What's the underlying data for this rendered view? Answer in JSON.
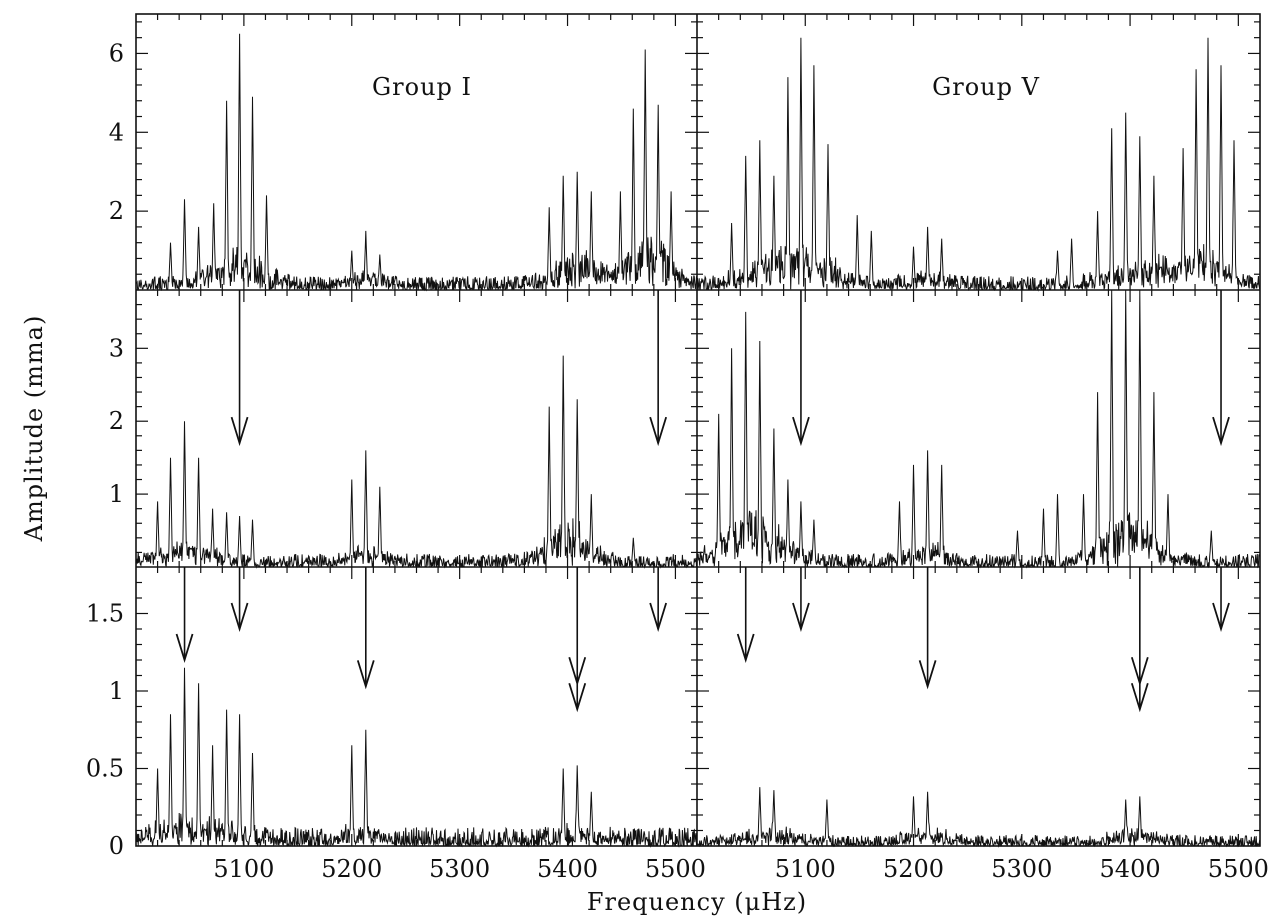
{
  "chart_data": {
    "type": "line",
    "title": "",
    "xlabel": "Frequency (μHz)",
    "ylabel": "Amplitude (mma)",
    "xlim": [
      5000,
      5520
    ],
    "x_ticks": [
      5100,
      5200,
      5300,
      5400,
      5500
    ],
    "x_tick_labels": [
      "5100",
      "5200",
      "5300",
      "5400",
      "5500"
    ],
    "columns": [
      {
        "name": "Group I"
      },
      {
        "name": "Group V"
      }
    ],
    "rows": [
      {
        "ylim": [
          0,
          7
        ],
        "y_ticks": [
          2,
          4,
          6
        ],
        "y_tick_labels": [
          "2",
          "4",
          "6"
        ],
        "panels": [
          {
            "group": "Group I",
            "noise": 0.35,
            "peaks": [
              {
                "x": 5032,
                "a": 1.2
              },
              {
                "x": 5045,
                "a": 2.3
              },
              {
                "x": 5058,
                "a": 1.6
              },
              {
                "x": 5072,
                "a": 2.2
              },
              {
                "x": 5084,
                "a": 4.8
              },
              {
                "x": 5096,
                "a": 6.5
              },
              {
                "x": 5108,
                "a": 4.9
              },
              {
                "x": 5121,
                "a": 2.4
              },
              {
                "x": 5200,
                "a": 1.0
              },
              {
                "x": 5213,
                "a": 1.5
              },
              {
                "x": 5226,
                "a": 0.9
              },
              {
                "x": 5383,
                "a": 2.1
              },
              {
                "x": 5396,
                "a": 2.9
              },
              {
                "x": 5409,
                "a": 3.0
              },
              {
                "x": 5422,
                "a": 2.5
              },
              {
                "x": 5449,
                "a": 2.5
              },
              {
                "x": 5461,
                "a": 4.6
              },
              {
                "x": 5472,
                "a": 6.1
              },
              {
                "x": 5484,
                "a": 4.7
              },
              {
                "x": 5496,
                "a": 2.5
              }
            ],
            "bumps": [
              {
                "x": 5096,
                "w": 32,
                "a": 0.8
              },
              {
                "x": 5410,
                "w": 30,
                "a": 0.8
              },
              {
                "x": 5475,
                "w": 30,
                "a": 1.2
              },
              {
                "x": 5213,
                "w": 20,
                "a": 0.2
              }
            ]
          },
          {
            "group": "Group V",
            "noise": 0.35,
            "peaks": [
              {
                "x": 5032,
                "a": 1.7
              },
              {
                "x": 5045,
                "a": 3.4
              },
              {
                "x": 5058,
                "a": 3.8
              },
              {
                "x": 5071,
                "a": 2.9
              },
              {
                "x": 5084,
                "a": 5.4
              },
              {
                "x": 5096,
                "a": 6.4
              },
              {
                "x": 5108,
                "a": 5.7
              },
              {
                "x": 5121,
                "a": 3.7
              },
              {
                "x": 5148,
                "a": 1.9
              },
              {
                "x": 5161,
                "a": 1.5
              },
              {
                "x": 5200,
                "a": 1.1
              },
              {
                "x": 5213,
                "a": 1.6
              },
              {
                "x": 5226,
                "a": 1.3
              },
              {
                "x": 5333,
                "a": 1.0
              },
              {
                "x": 5346,
                "a": 1.3
              },
              {
                "x": 5370,
                "a": 2.0
              },
              {
                "x": 5383,
                "a": 4.1
              },
              {
                "x": 5396,
                "a": 4.5
              },
              {
                "x": 5409,
                "a": 3.9
              },
              {
                "x": 5422,
                "a": 2.9
              },
              {
                "x": 5449,
                "a": 3.6
              },
              {
                "x": 5461,
                "a": 5.6
              },
              {
                "x": 5472,
                "a": 6.4
              },
              {
                "x": 5484,
                "a": 5.7
              },
              {
                "x": 5496,
                "a": 3.8
              }
            ],
            "bumps": [
              {
                "x": 5090,
                "w": 45,
                "a": 1.0
              },
              {
                "x": 5420,
                "w": 45,
                "a": 0.6
              },
              {
                "x": 5472,
                "w": 25,
                "a": 0.9
              },
              {
                "x": 5213,
                "w": 22,
                "a": 0.3
              }
            ]
          }
        ]
      },
      {
        "ylim": [
          0,
          3.8
        ],
        "y_ticks": [
          1,
          2,
          3
        ],
        "y_tick_labels": [
          "1",
          "2",
          "3"
        ],
        "panels": [
          {
            "group": "Group I",
            "noise": 0.18,
            "peaks": [
              {
                "x": 5020,
                "a": 0.9
              },
              {
                "x": 5032,
                "a": 1.5
              },
              {
                "x": 5045,
                "a": 2.0
              },
              {
                "x": 5058,
                "a": 1.5
              },
              {
                "x": 5071,
                "a": 0.8
              },
              {
                "x": 5084,
                "a": 0.75
              },
              {
                "x": 5096,
                "a": 0.7
              },
              {
                "x": 5108,
                "a": 0.65
              },
              {
                "x": 5200,
                "a": 1.2
              },
              {
                "x": 5213,
                "a": 1.6
              },
              {
                "x": 5226,
                "a": 1.1
              },
              {
                "x": 5383,
                "a": 2.2
              },
              {
                "x": 5396,
                "a": 2.9
              },
              {
                "x": 5409,
                "a": 2.3
              },
              {
                "x": 5422,
                "a": 1.0
              },
              {
                "x": 5461,
                "a": 0.4
              }
            ],
            "bumps": [
              {
                "x": 5045,
                "w": 35,
                "a": 0.25
              },
              {
                "x": 5400,
                "w": 25,
                "a": 0.6
              },
              {
                "x": 5213,
                "w": 20,
                "a": 0.2
              }
            ]
          },
          {
            "group": "Group V",
            "noise": 0.18,
            "peaks": [
              {
                "x": 5020,
                "a": 2.1
              },
              {
                "x": 5032,
                "a": 3.0
              },
              {
                "x": 5045,
                "a": 3.5
              },
              {
                "x": 5058,
                "a": 3.1
              },
              {
                "x": 5071,
                "a": 1.9
              },
              {
                "x": 5084,
                "a": 1.2
              },
              {
                "x": 5096,
                "a": 0.9
              },
              {
                "x": 5108,
                "a": 0.65
              },
              {
                "x": 5187,
                "a": 0.9
              },
              {
                "x": 5200,
                "a": 1.4
              },
              {
                "x": 5213,
                "a": 1.6
              },
              {
                "x": 5226,
                "a": 1.4
              },
              {
                "x": 5296,
                "a": 0.5
              },
              {
                "x": 5320,
                "a": 0.8
              },
              {
                "x": 5333,
                "a": 1.0
              },
              {
                "x": 5357,
                "a": 1.0
              },
              {
                "x": 5370,
                "a": 2.4
              },
              {
                "x": 5383,
                "a": 3.8
              },
              {
                "x": 5396,
                "a": 3.8
              },
              {
                "x": 5409,
                "a": 3.8
              },
              {
                "x": 5422,
                "a": 2.4
              },
              {
                "x": 5435,
                "a": 1.0
              },
              {
                "x": 5475,
                "a": 0.5
              }
            ],
            "bumps": [
              {
                "x": 5050,
                "w": 35,
                "a": 0.7
              },
              {
                "x": 5398,
                "w": 30,
                "a": 0.7
              },
              {
                "x": 5213,
                "w": 22,
                "a": 0.25
              }
            ]
          }
        ]
      },
      {
        "ylim": [
          0,
          1.8
        ],
        "y_ticks": [
          0,
          0.5,
          1,
          1.5
        ],
        "y_tick_labels": [
          "0",
          "0.5",
          "1",
          "1.5"
        ],
        "panels": [
          {
            "group": "Group I",
            "noise": 0.12,
            "peaks": [
              {
                "x": 5020,
                "a": 0.5
              },
              {
                "x": 5032,
                "a": 0.85
              },
              {
                "x": 5045,
                "a": 1.15
              },
              {
                "x": 5058,
                "a": 1.05
              },
              {
                "x": 5071,
                "a": 0.65
              },
              {
                "x": 5084,
                "a": 0.88
              },
              {
                "x": 5096,
                "a": 0.85
              },
              {
                "x": 5108,
                "a": 0.6
              },
              {
                "x": 5200,
                "a": 0.65
              },
              {
                "x": 5213,
                "a": 0.75
              },
              {
                "x": 5396,
                "a": 0.5
              },
              {
                "x": 5409,
                "a": 0.52
              },
              {
                "x": 5422,
                "a": 0.35
              }
            ],
            "bumps": [
              {
                "x": 5050,
                "w": 45,
                "a": 0.12
              },
              {
                "x": 5213,
                "w": 25,
                "a": 0.06
              },
              {
                "x": 5410,
                "w": 25,
                "a": 0.05
              }
            ]
          },
          {
            "group": "Group V",
            "noise": 0.07,
            "peaks": [
              {
                "x": 5058,
                "a": 0.38
              },
              {
                "x": 5071,
                "a": 0.36
              },
              {
                "x": 5120,
                "a": 0.3
              },
              {
                "x": 5200,
                "a": 0.32
              },
              {
                "x": 5213,
                "a": 0.35
              },
              {
                "x": 5396,
                "a": 0.3
              },
              {
                "x": 5409,
                "a": 0.32
              }
            ],
            "bumps": [
              {
                "x": 5070,
                "w": 30,
                "a": 0.08
              },
              {
                "x": 5213,
                "w": 25,
                "a": 0.08
              },
              {
                "x": 5405,
                "w": 25,
                "a": 0.08
              }
            ]
          }
        ]
      }
    ],
    "arrows": [
      {
        "row": 1,
        "panel": 0,
        "x": 5096,
        "top": 3.8,
        "tip": 1.7
      },
      {
        "row": 1,
        "panel": 0,
        "x": 5484,
        "top": 3.8,
        "tip": 1.7
      },
      {
        "row": 1,
        "panel": 1,
        "x": 5096,
        "top": 3.8,
        "tip": 1.7
      },
      {
        "row": 1,
        "panel": 1,
        "x": 5484,
        "top": 3.8,
        "tip": 1.7
      },
      {
        "row": 2,
        "panel": 0,
        "x": 5045,
        "top": 1.8,
        "tip": 1.2
      },
      {
        "row": 2,
        "panel": 0,
        "x": 5096,
        "top": 1.8,
        "tip": 1.4
      },
      {
        "row": 2,
        "panel": 0,
        "x": 5213,
        "top": 1.8,
        "tip": 1.03
      },
      {
        "row": 2,
        "panel": 0,
        "x": 5409,
        "top": 1.8,
        "tip": 1.05,
        "double": true
      },
      {
        "row": 2,
        "panel": 0,
        "x": 5484,
        "top": 1.8,
        "tip": 1.4
      },
      {
        "row": 2,
        "panel": 1,
        "x": 5045,
        "top": 1.8,
        "tip": 1.2
      },
      {
        "row": 2,
        "panel": 1,
        "x": 5096,
        "top": 1.8,
        "tip": 1.4
      },
      {
        "row": 2,
        "panel": 1,
        "x": 5213,
        "top": 1.8,
        "tip": 1.03
      },
      {
        "row": 2,
        "panel": 1,
        "x": 5409,
        "top": 1.8,
        "tip": 1.05,
        "double": true
      },
      {
        "row": 2,
        "panel": 1,
        "x": 5484,
        "top": 1.8,
        "tip": 1.4
      }
    ],
    "grid": false,
    "legend": "none"
  }
}
